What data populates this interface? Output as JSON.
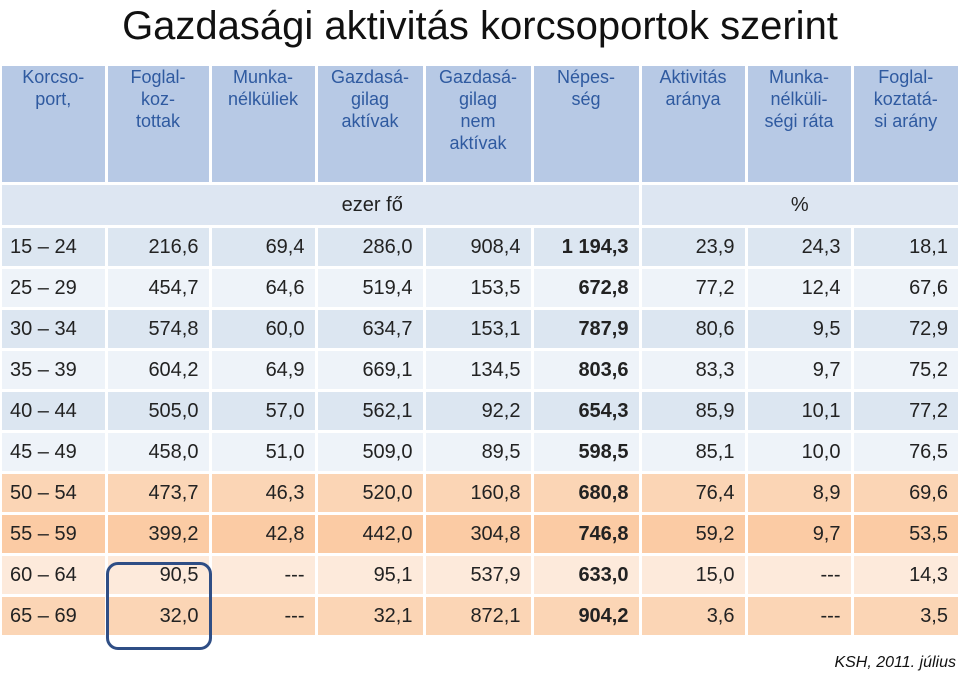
{
  "title": "Gazdasági aktivitás korcsoportok szerint",
  "headers": [
    {
      "line1": "Korcso-",
      "line2": "port,",
      "line3": "",
      "line4": ""
    },
    {
      "line1": "Foglal-",
      "line2": "koz-",
      "line3": "tottak",
      "line4": ""
    },
    {
      "line1": "Munka-",
      "line2": "nélküliek",
      "line3": "",
      "line4": ""
    },
    {
      "line1": "Gazdasá-",
      "line2": "gilag",
      "line3": "aktívak",
      "line4": ""
    },
    {
      "line1": "Gazdasá-",
      "line2": "gilag",
      "line3": "nem",
      "line4": "aktívak"
    },
    {
      "line1": "Népes-",
      "line2": "ség",
      "line3": "",
      "line4": ""
    },
    {
      "line1": "Aktivitás",
      "line2": "aránya",
      "line3": "",
      "line4": ""
    },
    {
      "line1": "Munka-",
      "line2": "nélküli-",
      "line3": "ségi ráta",
      "line4": ""
    },
    {
      "line1": "Foglal-",
      "line2": "koztatá-",
      "line3": "si arány",
      "line4": ""
    }
  ],
  "units": {
    "thousand": "ezer fő",
    "percent": "%"
  },
  "rows": [
    {
      "age": "15 – 24",
      "employed": "216,6",
      "unemployed": "69,4",
      "active": "286,0",
      "inactive": "908,4",
      "population": "1 194,3",
      "activity_rate": "23,9",
      "unemployment_rate": "24,3",
      "employment_rate": "18,1"
    },
    {
      "age": "25 – 29",
      "employed": "454,7",
      "unemployed": "64,6",
      "active": "519,4",
      "inactive": "153,5",
      "population": "672,8",
      "activity_rate": "77,2",
      "unemployment_rate": "12,4",
      "employment_rate": "67,6"
    },
    {
      "age": "30 – 34",
      "employed": "574,8",
      "unemployed": "60,0",
      "active": "634,7",
      "inactive": "153,1",
      "population": "787,9",
      "activity_rate": "80,6",
      "unemployment_rate": "9,5",
      "employment_rate": "72,9"
    },
    {
      "age": "35 – 39",
      "employed": "604,2",
      "unemployed": "64,9",
      "active": "669,1",
      "inactive": "134,5",
      "population": "803,6",
      "activity_rate": "83,3",
      "unemployment_rate": "9,7",
      "employment_rate": "75,2"
    },
    {
      "age": "40 – 44",
      "employed": "505,0",
      "unemployed": "57,0",
      "active": "562,1",
      "inactive": "92,2",
      "population": "654,3",
      "activity_rate": "85,9",
      "unemployment_rate": "10,1",
      "employment_rate": "77,2"
    },
    {
      "age": "45 – 49",
      "employed": "458,0",
      "unemployed": "51,0",
      "active": "509,0",
      "inactive": "89,5",
      "population": "598,5",
      "activity_rate": "85,1",
      "unemployment_rate": "10,0",
      "employment_rate": "76,5"
    },
    {
      "age": "50 – 54",
      "employed": "473,7",
      "unemployed": "46,3",
      "active": "520,0",
      "inactive": "160,8",
      "population": "680,8",
      "activity_rate": "76,4",
      "unemployment_rate": "8,9",
      "employment_rate": "69,6"
    },
    {
      "age": "55 – 59",
      "employed": "399,2",
      "unemployed": "42,8",
      "active": "442,0",
      "inactive": "304,8",
      "population": "746,8",
      "activity_rate": "59,2",
      "unemployment_rate": "9,7",
      "employment_rate": "53,5"
    },
    {
      "age": "60 – 64",
      "employed": "90,5",
      "unemployed": "---",
      "active": "95,1",
      "inactive": "537,9",
      "population": "633,0",
      "activity_rate": "15,0",
      "unemployment_rate": "---",
      "employment_rate": "14,3"
    },
    {
      "age": "65 – 69",
      "employed": "32,0",
      "unemployed": "---",
      "active": "32,1",
      "inactive": "872,1",
      "population": "904,2",
      "activity_rate": "3,6",
      "unemployment_rate": "---",
      "employment_rate": "3,5"
    }
  ],
  "source": "KSH, 2011. július",
  "colors": {
    "header_bg": "#b7c9e5",
    "header_text": "#2f5aa0",
    "highlight_border": "#2f4e85"
  }
}
